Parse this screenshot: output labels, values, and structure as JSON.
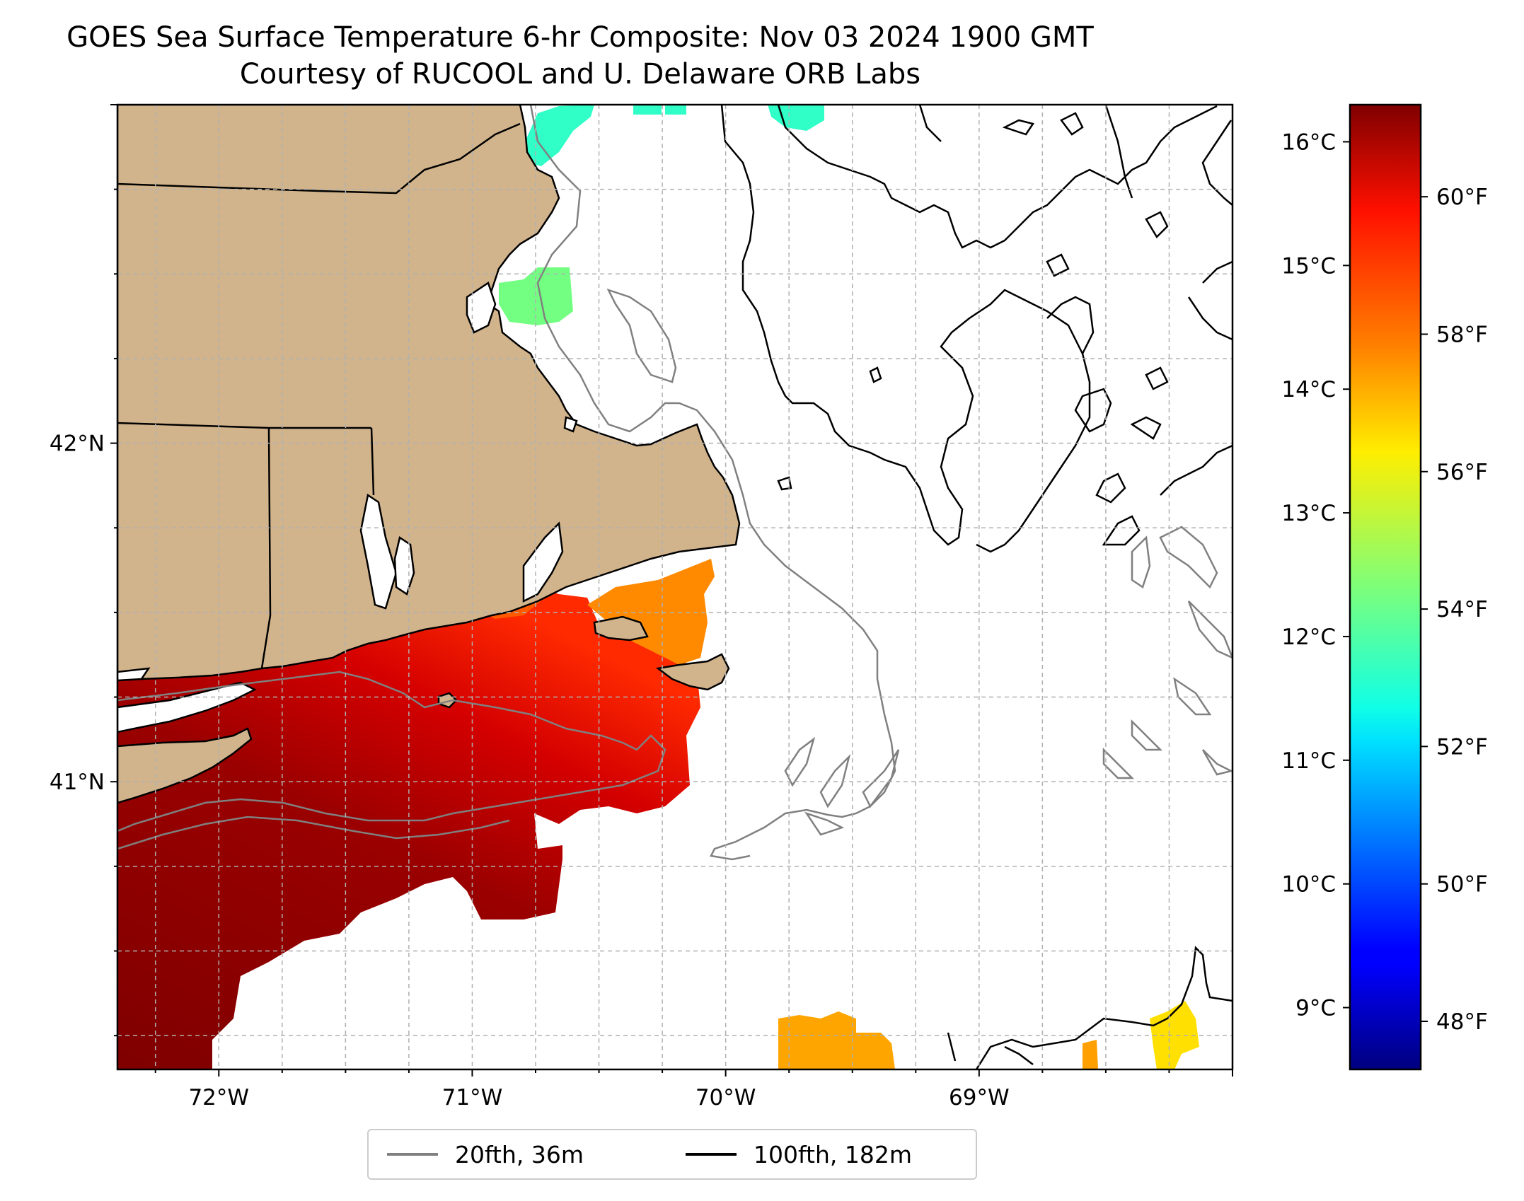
{
  "title": {
    "line1": "GOES Sea Surface Temperature 6-hr Composite: Nov 03 2024 1900 GMT",
    "line2": "Courtesy of RUCOOL and U. Delaware ORB Labs"
  },
  "map": {
    "extent": {
      "lon_min": -72.4,
      "lon_max": -68.0,
      "lat_min": 40.15,
      "lat_max": 43.0
    },
    "lon_ticks": [
      {
        "value": -72,
        "label": "72°W"
      },
      {
        "value": -71,
        "label": "71°W"
      },
      {
        "value": -70,
        "label": "70°W"
      },
      {
        "value": -69,
        "label": "69°W"
      }
    ],
    "lat_ticks": [
      {
        "value": 42,
        "label": "42°N"
      },
      {
        "value": 41,
        "label": "41°N"
      }
    ],
    "grid": true,
    "colors": {
      "land": "#d2b48c",
      "ocean": "#ffffff",
      "contour_20fth": "#808080",
      "contour_100fth": "#000000",
      "grid": "#b0b0b0"
    }
  },
  "colorbar": {
    "colormap": "jet",
    "range_c": [
      8.5,
      16.3
    ],
    "celsius_ticks": [
      {
        "value": 9,
        "label": "9°C"
      },
      {
        "value": 10,
        "label": "10°C"
      },
      {
        "value": 11,
        "label": "11°C"
      },
      {
        "value": 12,
        "label": "12°C"
      },
      {
        "value": 13,
        "label": "13°C"
      },
      {
        "value": 14,
        "label": "14°C"
      },
      {
        "value": 15,
        "label": "15°C"
      },
      {
        "value": 16,
        "label": "16°C"
      }
    ],
    "fahrenheit_ticks": [
      {
        "value": 48,
        "label": "48°F"
      },
      {
        "value": 50,
        "label": "50°F"
      },
      {
        "value": 52,
        "label": "52°F"
      },
      {
        "value": 54,
        "label": "54°F"
      },
      {
        "value": 56,
        "label": "56°F"
      },
      {
        "value": 58,
        "label": "58°F"
      },
      {
        "value": 60,
        "label": "60°F"
      }
    ]
  },
  "legend": {
    "items": [
      {
        "label": "20fth, 36m",
        "color": "#808080"
      },
      {
        "label": "100fth, 182m",
        "color": "#000000"
      }
    ]
  }
}
